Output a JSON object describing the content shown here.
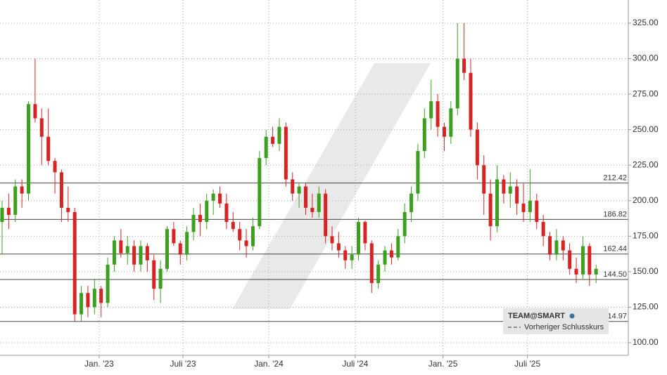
{
  "chart_data": {
    "type": "candlestick",
    "up_color": "#3c9f1f",
    "down_color": "#d62424",
    "open": [
      185,
      195,
      190,
      210,
      205,
      268,
      258,
      245,
      228,
      220,
      195,
      192,
      120,
      135,
      125,
      138,
      128,
      155,
      172,
      163,
      168,
      155,
      168,
      158,
      138,
      152,
      180,
      170,
      162,
      178,
      190,
      185,
      200,
      205,
      198,
      185,
      180,
      172,
      168,
      182,
      230,
      245,
      240,
      252,
      215,
      205,
      210,
      195,
      192,
      205,
      175,
      170,
      165,
      158,
      162,
      185,
      170,
      142,
      155,
      165,
      160,
      175,
      192,
      205,
      235,
      258,
      270,
      252,
      245,
      265,
      300,
      290,
      250,
      225,
      205,
      182,
      215,
      205,
      210,
      198,
      192,
      200,
      185,
      175,
      162,
      172,
      165,
      152,
      148,
      168,
      148
    ],
    "high": [
      200,
      205,
      215,
      215,
      270,
      300,
      265,
      265,
      230,
      222,
      210,
      195,
      140,
      140,
      145,
      140,
      160,
      175,
      180,
      175,
      172,
      172,
      170,
      162,
      158,
      182,
      185,
      172,
      182,
      195,
      198,
      205,
      208,
      210,
      205,
      192,
      185,
      180,
      188,
      235,
      250,
      252,
      258,
      255,
      220,
      212,
      212,
      205,
      210,
      208,
      182,
      178,
      168,
      168,
      188,
      186,
      172,
      158,
      168,
      170,
      180,
      198,
      210,
      240,
      265,
      285,
      275,
      255,
      270,
      325,
      325,
      300,
      255,
      232,
      215,
      225,
      218,
      220,
      215,
      212,
      222,
      205,
      190,
      178,
      180,
      175,
      170,
      160,
      175,
      170,
      155
    ],
    "low": [
      162,
      180,
      185,
      195,
      200,
      255,
      225,
      225,
      205,
      185,
      185,
      115,
      115,
      118,
      120,
      118,
      125,
      150,
      160,
      155,
      150,
      150,
      150,
      130,
      128,
      150,
      168,
      155,
      158,
      172,
      175,
      180,
      190,
      195,
      180,
      178,
      165,
      160,
      165,
      180,
      225,
      238,
      235,
      210,
      200,
      195,
      190,
      188,
      188,
      170,
      165,
      160,
      152,
      152,
      158,
      165,
      135,
      138,
      150,
      155,
      158,
      170,
      185,
      200,
      230,
      250,
      245,
      235,
      240,
      260,
      285,
      245,
      215,
      190,
      172,
      178,
      198,
      195,
      190,
      185,
      185,
      180,
      168,
      158,
      158,
      158,
      148,
      142,
      145,
      140,
      142
    ],
    "close": [
      195,
      190,
      210,
      205,
      268,
      258,
      245,
      228,
      220,
      195,
      192,
      120,
      135,
      125,
      138,
      128,
      155,
      172,
      163,
      168,
      155,
      168,
      158,
      138,
      152,
      180,
      170,
      162,
      178,
      190,
      185,
      200,
      205,
      198,
      185,
      180,
      172,
      168,
      182,
      230,
      245,
      240,
      252,
      215,
      205,
      210,
      195,
      192,
      205,
      175,
      170,
      165,
      158,
      162,
      185,
      170,
      142,
      155,
      165,
      160,
      175,
      192,
      205,
      235,
      258,
      270,
      252,
      245,
      265,
      300,
      290,
      250,
      225,
      205,
      182,
      215,
      205,
      210,
      198,
      192,
      200,
      185,
      175,
      162,
      172,
      165,
      152,
      148,
      168,
      148,
      152
    ],
    "xticks": [
      {
        "value": 14.7,
        "label": "Jan. '23"
      },
      {
        "value": 27.4,
        "label": "Juli '23"
      },
      {
        "value": 40.4,
        "label": "Jan. '24"
      },
      {
        "value": 53.5,
        "label": "Juli '24"
      },
      {
        "value": 66.8,
        "label": "Jan. '25"
      },
      {
        "value": 79.6,
        "label": "Juli '25"
      }
    ],
    "ylim": [
      91.1,
      341.3
    ],
    "yticks": [
      {
        "value": 100,
        "label": "100.00"
      },
      {
        "value": 125,
        "label": "125.00"
      },
      {
        "value": 150,
        "label": "150.00"
      },
      {
        "value": 175,
        "label": "175.00"
      },
      {
        "value": 200,
        "label": "200.00"
      },
      {
        "value": 225,
        "label": "225.00"
      },
      {
        "value": 250,
        "label": "250.00"
      },
      {
        "value": 275,
        "label": "275.00"
      },
      {
        "value": 300,
        "label": "300.00"
      },
      {
        "value": 325,
        "label": "325.00"
      }
    ],
    "reference_lines": [
      212.42,
      186.82,
      162.44,
      {
        "value": 144.5,
        "label": "144.50"
      },
      114.97
    ],
    "grid": true,
    "legend": {
      "title": "TEAM@SMART",
      "items": [
        "Vorheriger Schlusskurs"
      ]
    }
  }
}
